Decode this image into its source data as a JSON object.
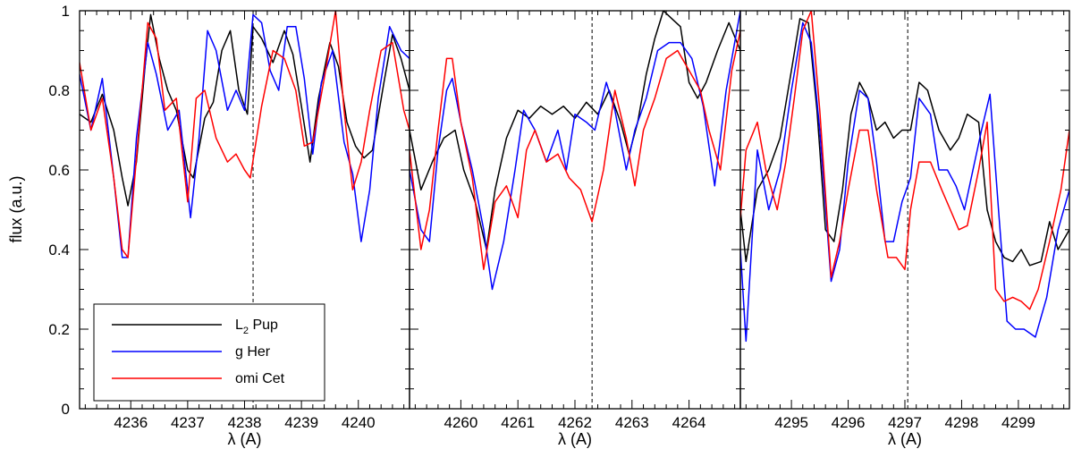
{
  "chart_data": {
    "type": "line",
    "ylabel": "flux (a.u.)",
    "ylim": [
      0,
      1
    ],
    "yticks": [
      0,
      0.2,
      0.4,
      0.6,
      0.8,
      1
    ],
    "ytick_labels": [
      "0",
      "0.2",
      "0.4",
      "0.6",
      "0.8",
      "1"
    ],
    "legend": {
      "position": "bottom-left of first panel",
      "entries": [
        {
          "name": "L",
          "sub": "2",
          "rest": " Pup",
          "color": "#000000"
        },
        {
          "name": "g Her",
          "sub": "",
          "rest": "",
          "color": "#0000ff"
        },
        {
          "name": "omi Cet",
          "sub": "",
          "rest": "",
          "color": "#ff0000"
        }
      ]
    },
    "panels": [
      {
        "xlabel": "λ (A)",
        "xlim": [
          4235.1,
          4240.9
        ],
        "xticks": [
          4236,
          4237,
          4238,
          4239,
          4240
        ],
        "xtick_labels": [
          "4236",
          "4237",
          "4238",
          "4239",
          "4240"
        ],
        "marker_line": 4238.15,
        "series": [
          {
            "name": "L2 Pup",
            "color": "#000000",
            "x": [
              4235.1,
              4235.3,
              4235.5,
              4235.7,
              4235.85,
              4235.95,
              4236.1,
              4236.25,
              4236.35,
              4236.5,
              4236.65,
              4236.8,
              4237.0,
              4237.1,
              4237.3,
              4237.45,
              4237.6,
              4237.75,
              4237.9,
              4238.05,
              4238.15,
              4238.3,
              4238.5,
              4238.7,
              4238.85,
              4239.0,
              4239.15,
              4239.3,
              4239.5,
              4239.65,
              4239.8,
              4239.95,
              4240.1,
              4240.25,
              4240.45,
              4240.6,
              4240.75,
              4240.9
            ],
            "y": [
              0.74,
              0.72,
              0.79,
              0.7,
              0.58,
              0.51,
              0.62,
              0.86,
              0.99,
              0.88,
              0.8,
              0.75,
              0.6,
              0.58,
              0.73,
              0.77,
              0.9,
              0.95,
              0.8,
              0.74,
              0.96,
              0.93,
              0.87,
              0.95,
              0.89,
              0.76,
              0.62,
              0.78,
              0.92,
              0.86,
              0.72,
              0.66,
              0.63,
              0.65,
              0.82,
              0.94,
              0.88,
              0.8
            ]
          },
          {
            "name": "g Her",
            "color": "#0000ff",
            "x": [
              4235.1,
              4235.3,
              4235.5,
              4235.7,
              4235.85,
              4235.95,
              4236.1,
              4236.3,
              4236.45,
              4236.65,
              4236.85,
              4237.05,
              4237.2,
              4237.35,
              4237.5,
              4237.7,
              4237.85,
              4238.0,
              4238.15,
              4238.3,
              4238.45,
              4238.6,
              4238.75,
              4238.9,
              4239.05,
              4239.2,
              4239.35,
              4239.55,
              4239.75,
              4239.9,
              4240.05,
              4240.2,
              4240.35,
              4240.55,
              4240.75,
              4240.9
            ],
            "y": [
              0.84,
              0.7,
              0.83,
              0.58,
              0.38,
              0.38,
              0.68,
              0.92,
              0.84,
              0.7,
              0.75,
              0.48,
              0.68,
              0.95,
              0.9,
              0.75,
              0.8,
              0.75,
              0.99,
              0.97,
              0.85,
              0.8,
              0.96,
              0.96,
              0.83,
              0.64,
              0.82,
              0.9,
              0.67,
              0.59,
              0.42,
              0.55,
              0.78,
              0.96,
              0.9,
              0.88
            ]
          },
          {
            "name": "omi Cet",
            "color": "#ff0000",
            "x": [
              4235.1,
              4235.3,
              4235.5,
              4235.7,
              4235.85,
              4235.95,
              4236.1,
              4236.3,
              4236.45,
              4236.6,
              4236.8,
              4237.0,
              4237.15,
              4237.3,
              4237.5,
              4237.7,
              4237.85,
              4238.0,
              4238.1,
              4238.3,
              4238.5,
              4238.7,
              4238.9,
              4239.05,
              4239.2,
              4239.4,
              4239.6,
              4239.75,
              4239.9,
              4240.05,
              4240.2,
              4240.4,
              4240.6,
              4240.8,
              4240.9
            ],
            "y": [
              0.87,
              0.7,
              0.78,
              0.58,
              0.4,
              0.38,
              0.63,
              0.97,
              0.93,
              0.75,
              0.78,
              0.52,
              0.78,
              0.8,
              0.68,
              0.62,
              0.64,
              0.6,
              0.58,
              0.76,
              0.9,
              0.88,
              0.8,
              0.66,
              0.67,
              0.83,
              1.0,
              0.75,
              0.55,
              0.62,
              0.75,
              0.9,
              0.92,
              0.75,
              0.7
            ]
          }
        ]
      },
      {
        "xlabel": "λ (A)",
        "xlim": [
          4259.1,
          4264.9
        ],
        "xticks": [
          4260,
          4261,
          4262,
          4263,
          4264
        ],
        "xtick_labels": [
          "4260",
          "4261",
          "4262",
          "4263",
          "4264"
        ],
        "marker_line": 4262.3,
        "series": [
          {
            "name": "L2 Pup",
            "color": "#000000",
            "x": [
              4259.1,
              4259.3,
              4259.5,
              4259.7,
              4259.9,
              4260.05,
              4260.25,
              4260.45,
              4260.6,
              4260.8,
              4261.0,
              4261.2,
              4261.4,
              4261.6,
              4261.8,
              4262.0,
              4262.2,
              4262.4,
              4262.6,
              4262.8,
              4262.95,
              4263.1,
              4263.25,
              4263.4,
              4263.55,
              4263.7,
              4263.85,
              4264.0,
              4264.15,
              4264.3,
              4264.5,
              4264.7,
              4264.9
            ],
            "y": [
              0.7,
              0.55,
              0.62,
              0.68,
              0.7,
              0.6,
              0.52,
              0.4,
              0.55,
              0.68,
              0.75,
              0.73,
              0.76,
              0.74,
              0.76,
              0.73,
              0.77,
              0.74,
              0.8,
              0.72,
              0.64,
              0.72,
              0.84,
              0.93,
              1.0,
              0.98,
              0.96,
              0.82,
              0.78,
              0.82,
              0.9,
              0.97,
              0.9
            ]
          },
          {
            "name": "g Her",
            "color": "#0000ff",
            "x": [
              4259.1,
              4259.3,
              4259.45,
              4259.6,
              4259.75,
              4259.85,
              4260.0,
              4260.2,
              4260.4,
              4260.55,
              4260.75,
              4260.95,
              4261.1,
              4261.3,
              4261.5,
              4261.7,
              4261.85,
              4262.0,
              4262.2,
              4262.35,
              4262.55,
              4262.7,
              4262.9,
              4263.05,
              4263.25,
              4263.45,
              4263.65,
              4263.85,
              4264.05,
              4264.25,
              4264.45,
              4264.65,
              4264.9
            ],
            "y": [
              0.6,
              0.45,
              0.42,
              0.65,
              0.8,
              0.83,
              0.72,
              0.6,
              0.45,
              0.3,
              0.42,
              0.6,
              0.75,
              0.7,
              0.62,
              0.7,
              0.6,
              0.74,
              0.72,
              0.7,
              0.82,
              0.75,
              0.6,
              0.7,
              0.78,
              0.9,
              0.92,
              0.92,
              0.88,
              0.76,
              0.56,
              0.8,
              1.0
            ]
          },
          {
            "name": "omi Cet",
            "color": "#ff0000",
            "x": [
              4259.1,
              4259.3,
              4259.45,
              4259.6,
              4259.75,
              4259.85,
              4260.0,
              4260.2,
              4260.4,
              4260.6,
              4260.8,
              4261.0,
              4261.15,
              4261.3,
              4261.5,
              4261.7,
              4261.9,
              4262.1,
              4262.3,
              4262.5,
              4262.7,
              4262.9,
              4263.05,
              4263.2,
              4263.4,
              4263.6,
              4263.8,
              4264.0,
              4264.2,
              4264.35,
              4264.55,
              4264.75,
              4264.9
            ],
            "y": [
              0.65,
              0.4,
              0.5,
              0.7,
              0.88,
              0.88,
              0.72,
              0.58,
              0.35,
              0.52,
              0.56,
              0.48,
              0.65,
              0.7,
              0.62,
              0.64,
              0.58,
              0.55,
              0.47,
              0.6,
              0.8,
              0.68,
              0.56,
              0.7,
              0.78,
              0.88,
              0.9,
              0.85,
              0.8,
              0.7,
              0.6,
              0.85,
              0.95
            ]
          }
        ]
      },
      {
        "xlabel": "λ (A)",
        "xlim": [
          4294.1,
          4299.9
        ],
        "xticks": [
          4295,
          4296,
          4297,
          4298,
          4299
        ],
        "xtick_labels": [
          "4295",
          "4296",
          "4297",
          "4298",
          "4299"
        ],
        "marker_line": 4297.05,
        "series": [
          {
            "name": "L2 Pup",
            "color": "#000000",
            "x": [
              4294.1,
              4294.2,
              4294.4,
              4294.6,
              4294.8,
              4295.0,
              4295.15,
              4295.3,
              4295.45,
              4295.6,
              4295.75,
              4295.9,
              4296.05,
              4296.2,
              4296.35,
              4296.5,
              4296.65,
              4296.8,
              4296.95,
              4297.1,
              4297.25,
              4297.4,
              4297.6,
              4297.8,
              4297.95,
              4298.1,
              4298.3,
              4298.45,
              4298.6,
              4298.75,
              4298.9,
              4299.05,
              4299.2,
              4299.4,
              4299.55,
              4299.7,
              4299.9
            ],
            "y": [
              0.5,
              0.37,
              0.55,
              0.6,
              0.68,
              0.85,
              0.98,
              0.97,
              0.75,
              0.45,
              0.42,
              0.55,
              0.74,
              0.82,
              0.78,
              0.7,
              0.72,
              0.68,
              0.7,
              0.7,
              0.82,
              0.8,
              0.7,
              0.65,
              0.68,
              0.74,
              0.72,
              0.5,
              0.42,
              0.38,
              0.37,
              0.4,
              0.36,
              0.37,
              0.47,
              0.4,
              0.45
            ]
          },
          {
            "name": "g Her",
            "color": "#0000ff",
            "x": [
              4294.1,
              4294.2,
              4294.4,
              4294.6,
              4294.8,
              4295.0,
              4295.2,
              4295.35,
              4295.5,
              4295.7,
              4295.85,
              4296.0,
              4296.2,
              4296.35,
              4296.5,
              4296.65,
              4296.8,
              4296.95,
              4297.1,
              4297.25,
              4297.45,
              4297.6,
              4297.75,
              4297.9,
              4298.05,
              4298.2,
              4298.35,
              4298.5,
              4298.65,
              4298.8,
              4298.95,
              4299.1,
              4299.3,
              4299.5,
              4299.7,
              4299.9
            ],
            "y": [
              0.4,
              0.17,
              0.65,
              0.5,
              0.6,
              0.8,
              0.97,
              0.92,
              0.7,
              0.32,
              0.4,
              0.62,
              0.8,
              0.78,
              0.62,
              0.42,
              0.42,
              0.52,
              0.58,
              0.78,
              0.74,
              0.6,
              0.6,
              0.56,
              0.5,
              0.6,
              0.7,
              0.79,
              0.5,
              0.22,
              0.2,
              0.2,
              0.18,
              0.28,
              0.45,
              0.55
            ]
          },
          {
            "name": "omi Cet",
            "color": "#ff0000",
            "x": [
              4294.1,
              4294.2,
              4294.4,
              4294.55,
              4294.75,
              4294.9,
              4295.05,
              4295.2,
              4295.35,
              4295.5,
              4295.7,
              4295.85,
              4296.0,
              4296.2,
              4296.35,
              4296.5,
              4296.7,
              4296.85,
              4297.0,
              4297.1,
              4297.25,
              4297.45,
              4297.65,
              4297.8,
              4297.95,
              4298.1,
              4298.3,
              4298.45,
              4298.6,
              4298.75,
              4298.9,
              4299.05,
              4299.2,
              4299.35,
              4299.55,
              4299.75,
              4299.9
            ],
            "y": [
              0.48,
              0.65,
              0.72,
              0.6,
              0.5,
              0.62,
              0.78,
              0.95,
              1.0,
              0.75,
              0.33,
              0.42,
              0.55,
              0.7,
              0.7,
              0.55,
              0.38,
              0.38,
              0.35,
              0.5,
              0.62,
              0.62,
              0.55,
              0.5,
              0.45,
              0.46,
              0.6,
              0.72,
              0.3,
              0.27,
              0.28,
              0.27,
              0.25,
              0.3,
              0.42,
              0.55,
              0.7
            ]
          }
        ]
      }
    ]
  }
}
